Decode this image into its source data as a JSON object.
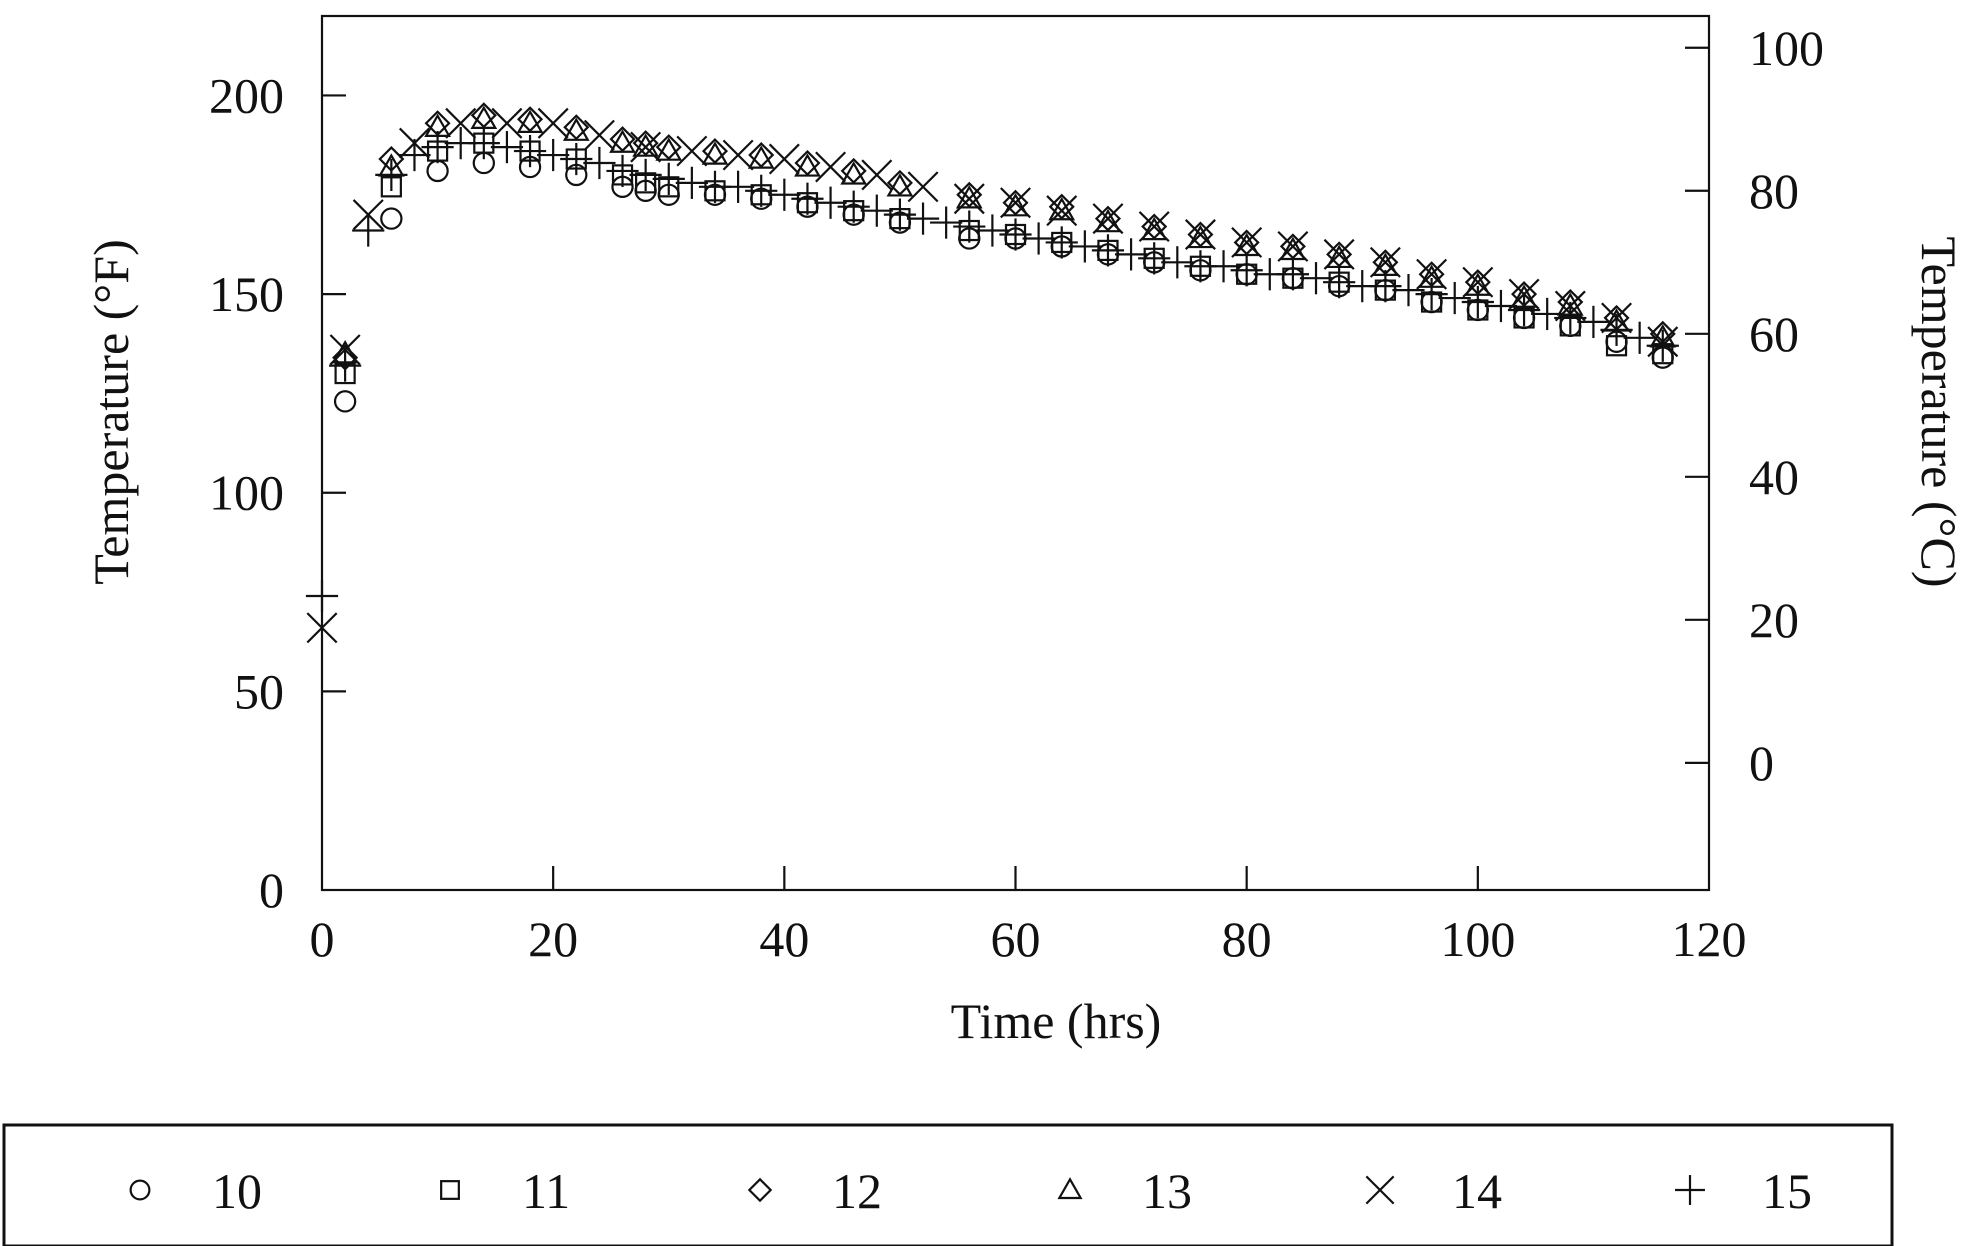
{
  "chart_data": {
    "type": "scatter",
    "xlabel": "Time (hrs)",
    "ylabel": "Temperature (°F)",
    "y2label": "Temperature (°C)",
    "xlim": [
      0,
      120
    ],
    "ylim": [
      0,
      220
    ],
    "y2lim": [
      -17.78,
      104.44
    ],
    "xticks": [
      0,
      20,
      40,
      60,
      80,
      100,
      120
    ],
    "yticks": [
      0,
      50,
      100,
      150,
      200
    ],
    "y2ticks": [
      0,
      20,
      40,
      60,
      80,
      100
    ],
    "grid": false,
    "legend_position": "bottom",
    "series": [
      {
        "name": "10",
        "marker": "circle",
        "x": [
          2,
          6,
          10,
          14,
          18,
          22,
          26,
          28,
          30,
          34,
          38,
          42,
          46,
          50,
          56,
          60,
          64,
          68,
          72,
          76,
          80,
          84,
          88,
          92,
          96,
          100,
          104,
          108,
          112,
          116
        ],
        "y": [
          123,
          169,
          181,
          183,
          182,
          180,
          177,
          176,
          175,
          175,
          174,
          172,
          170,
          168,
          164,
          164,
          162,
          160,
          158,
          156,
          155,
          154,
          152,
          151,
          148,
          146,
          144,
          142,
          138,
          134
        ]
      },
      {
        "name": "11",
        "marker": "square",
        "x": [
          2,
          6,
          10,
          14,
          18,
          22,
          26,
          28,
          30,
          34,
          38,
          42,
          46,
          50,
          56,
          60,
          64,
          68,
          72,
          76,
          80,
          84,
          88,
          92,
          96,
          100,
          104,
          108,
          112,
          116
        ],
        "y": [
          130,
          177,
          186,
          188,
          186,
          184,
          180,
          178,
          177,
          176,
          175,
          173,
          171,
          169,
          166,
          165,
          163,
          161,
          159,
          157,
          155,
          154,
          153,
          151,
          148,
          146,
          144,
          142,
          137,
          135
        ]
      },
      {
        "name": "12",
        "marker": "diamond",
        "x": [
          2,
          6,
          10,
          14,
          18,
          22,
          26,
          28,
          30,
          34,
          38,
          42,
          46,
          50,
          56,
          60,
          64,
          68,
          72,
          76,
          80,
          84,
          88,
          92,
          96,
          100,
          104,
          108,
          112,
          116
        ],
        "y": [
          134,
          184,
          193,
          195,
          194,
          192,
          189,
          188,
          187,
          186,
          185,
          183,
          181,
          178,
          175,
          173,
          172,
          169,
          167,
          165,
          163,
          162,
          160,
          158,
          155,
          153,
          150,
          148,
          144,
          140
        ]
      },
      {
        "name": "13",
        "marker": "triangle",
        "x": [
          2,
          6,
          10,
          14,
          18,
          22,
          26,
          28,
          30,
          34,
          38,
          42,
          46,
          50,
          56,
          60,
          64,
          68,
          72,
          76,
          80,
          84,
          88,
          92,
          96,
          100,
          104,
          108,
          112,
          116
        ],
        "y": [
          135,
          182,
          192,
          194,
          193,
          191,
          188,
          187,
          186,
          185,
          184,
          182,
          180,
          177,
          174,
          172,
          171,
          168,
          166,
          164,
          162,
          161,
          159,
          157,
          154,
          152,
          149,
          147,
          143,
          139
        ]
      },
      {
        "name": "14",
        "marker": "x",
        "x": [
          0,
          2,
          4,
          8,
          12,
          16,
          20,
          24,
          28,
          32,
          36,
          40,
          44,
          48,
          52,
          56,
          60,
          64,
          68,
          72,
          76,
          80,
          84,
          88,
          92,
          96,
          100,
          104,
          108,
          112,
          116
        ],
        "y": [
          66,
          136,
          170,
          188,
          193,
          193,
          193,
          190,
          187,
          186,
          185,
          184,
          182,
          180,
          177,
          174,
          173,
          171,
          169,
          167,
          165,
          163,
          162,
          160,
          158,
          155,
          153,
          150,
          147,
          144,
          138
        ]
      },
      {
        "name": "15",
        "marker": "plus",
        "x": [
          0,
          2,
          4,
          6,
          8,
          10,
          12,
          14,
          16,
          18,
          20,
          22,
          24,
          26,
          28,
          30,
          32,
          34,
          36,
          38,
          40,
          42,
          44,
          46,
          48,
          50,
          52,
          54,
          56,
          58,
          60,
          62,
          64,
          66,
          68,
          70,
          72,
          74,
          76,
          78,
          80,
          82,
          84,
          86,
          88,
          90,
          92,
          94,
          96,
          98,
          100,
          102,
          104,
          106,
          108,
          110,
          112,
          114,
          116
        ],
        "y": [
          74,
          132,
          166,
          180,
          185,
          187,
          188,
          188,
          187,
          186,
          185,
          184,
          183,
          181,
          180,
          179,
          178,
          177,
          177,
          176,
          175,
          174,
          173,
          172,
          171,
          170,
          169,
          168,
          167,
          166,
          165,
          164,
          163,
          162,
          161,
          160,
          159,
          158,
          157,
          157,
          156,
          155,
          155,
          154,
          153,
          152,
          152,
          151,
          150,
          149,
          148,
          147,
          146,
          145,
          144,
          143,
          141,
          139,
          137
        ]
      }
    ]
  }
}
